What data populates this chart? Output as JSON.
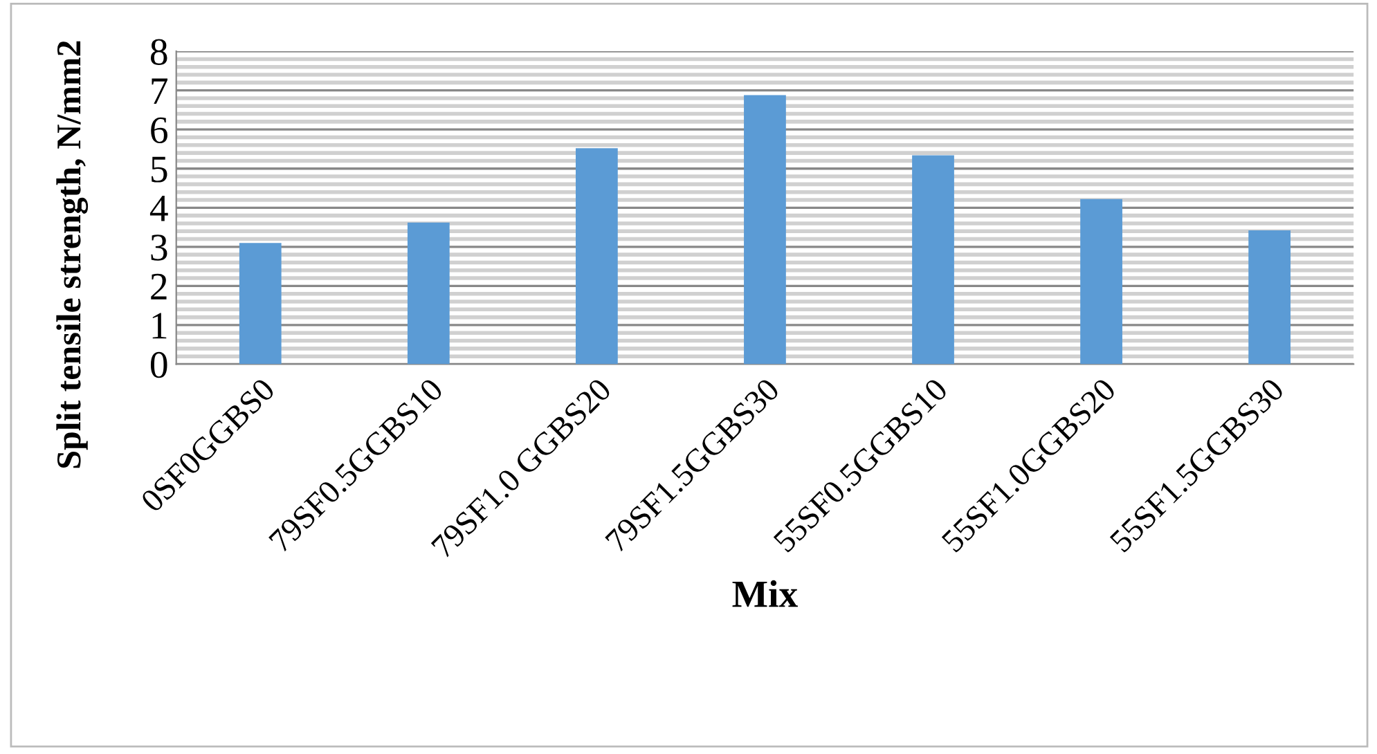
{
  "chart_data": {
    "type": "bar",
    "xlabel": "Mix",
    "ylabel": "Split tensile strength, N/mm2",
    "categories": [
      "0SF0GGBS0",
      "79SF0.5GGBS10",
      "79SF1.0 GGBS20",
      "79SF1.5GGBS30",
      "55SF0.5GGBS10",
      "55SF1.0GGBS20",
      "55SF1.5GGBS30"
    ],
    "values": [
      3.1,
      3.62,
      5.52,
      6.88,
      5.34,
      4.22,
      3.42
    ],
    "color": "#5b9bd5",
    "ylim": [
      0,
      8
    ],
    "yticks": [
      0,
      1,
      2,
      3,
      4,
      5,
      6,
      7,
      8
    ],
    "grid": "y",
    "legend": false
  }
}
